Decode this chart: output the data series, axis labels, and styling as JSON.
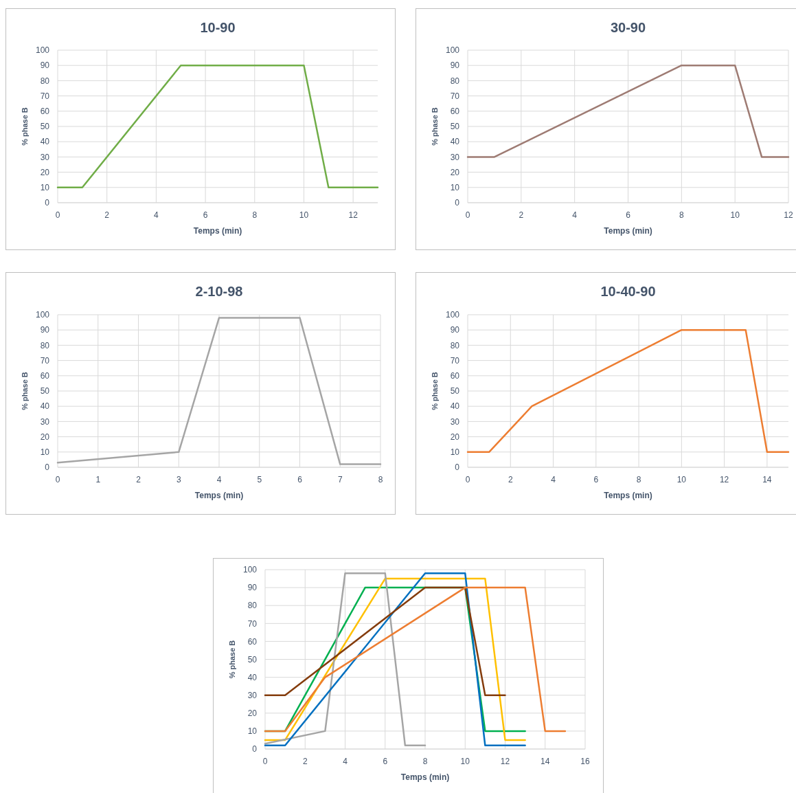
{
  "chart_data": [
    {
      "type": "line",
      "title": "10-90",
      "xlabel": "Temps (min)",
      "ylabel": "% phase B",
      "xlim": [
        0,
        13
      ],
      "xticks": [
        0,
        2,
        4,
        6,
        8,
        10,
        12
      ],
      "ylim": [
        0,
        100
      ],
      "yticks": [
        0,
        10,
        20,
        30,
        40,
        50,
        60,
        70,
        80,
        90,
        100
      ],
      "grid": true,
      "marker": "none",
      "line_style": "solid",
      "series": [
        {
          "color": "#70ad47",
          "x": [
            0,
            1,
            5,
            10,
            11,
            13
          ],
          "values": [
            10,
            10,
            90,
            90,
            10,
            10
          ]
        }
      ]
    },
    {
      "type": "line",
      "title": "30-90",
      "xlabel": "Temps (min)",
      "ylabel": "% phase B",
      "xlim": [
        0,
        12
      ],
      "xticks": [
        0,
        2,
        4,
        6,
        8,
        10,
        12
      ],
      "ylim": [
        0,
        100
      ],
      "yticks": [
        0,
        10,
        20,
        30,
        40,
        50,
        60,
        70,
        80,
        90,
        100
      ],
      "grid": true,
      "marker": "none",
      "line_style": "solid",
      "series": [
        {
          "color": "#9e7b73",
          "x": [
            0,
            1,
            8,
            10,
            11,
            12
          ],
          "values": [
            30,
            30,
            90,
            90,
            30,
            30
          ]
        }
      ]
    },
    {
      "type": "line",
      "title": "2-10-98",
      "xlabel": "Temps (min)",
      "ylabel": "% phase B",
      "xlim": [
        0,
        8
      ],
      "xticks": [
        0,
        1,
        2,
        3,
        4,
        5,
        6,
        7,
        8
      ],
      "ylim": [
        0,
        100
      ],
      "yticks": [
        0,
        10,
        20,
        30,
        40,
        50,
        60,
        70,
        80,
        90,
        100
      ],
      "grid": true,
      "marker": "none",
      "line_style": "solid",
      "series": [
        {
          "color": "#a5a5a5",
          "x": [
            0,
            3,
            4,
            6,
            7,
            8
          ],
          "values": [
            3,
            10,
            98,
            98,
            2,
            2
          ]
        }
      ]
    },
    {
      "type": "line",
      "title": "10-40-90",
      "xlabel": "Temps (min)",
      "ylabel": "% phase B",
      "xlim": [
        0,
        15
      ],
      "xticks": [
        0,
        2,
        4,
        6,
        8,
        10,
        12,
        14
      ],
      "ylim": [
        0,
        100
      ],
      "yticks": [
        0,
        10,
        20,
        30,
        40,
        50,
        60,
        70,
        80,
        90,
        100
      ],
      "grid": true,
      "marker": "none",
      "line_style": "solid",
      "series": [
        {
          "color": "#ed7d31",
          "x": [
            0,
            1,
            3,
            10,
            13,
            14,
            15
          ],
          "values": [
            10,
            10,
            40,
            90,
            90,
            10,
            10
          ]
        }
      ]
    },
    {
      "type": "line",
      "xlabel": "Temps (min)",
      "ylabel": "% phase B",
      "xlim": [
        0,
        16
      ],
      "xticks": [
        0,
        2,
        4,
        6,
        8,
        10,
        12,
        14,
        16
      ],
      "ylim": [
        0,
        100
      ],
      "yticks": [
        0,
        10,
        20,
        30,
        40,
        50,
        60,
        70,
        80,
        90,
        100
      ],
      "grid": true,
      "marker": "none",
      "line_style": "solid",
      "series": [
        {
          "color": "#00b050",
          "x": [
            0,
            1,
            5,
            10,
            11,
            13
          ],
          "values": [
            10,
            10,
            90,
            90,
            10,
            10
          ]
        },
        {
          "color": "#ffc000",
          "x": [
            0,
            1,
            6,
            11,
            12,
            13
          ],
          "values": [
            5,
            5,
            95,
            95,
            5,
            5
          ]
        },
        {
          "color": "#a5a5a5",
          "x": [
            0,
            3,
            4,
            6,
            7,
            8
          ],
          "values": [
            3,
            10,
            98,
            98,
            2,
            2
          ]
        },
        {
          "color": "#0070c0",
          "x": [
            0,
            1,
            8,
            10,
            11,
            13
          ],
          "values": [
            2,
            2,
            98,
            98,
            2,
            2
          ]
        },
        {
          "color": "#843c0c",
          "x": [
            0,
            1,
            8,
            10,
            11,
            12
          ],
          "values": [
            30,
            30,
            90,
            90,
            30,
            30
          ]
        },
        {
          "color": "#ed7d31",
          "x": [
            0,
            1,
            3,
            10,
            13,
            14,
            15
          ],
          "values": [
            10,
            10,
            40,
            90,
            90,
            10,
            10
          ]
        }
      ]
    }
  ]
}
